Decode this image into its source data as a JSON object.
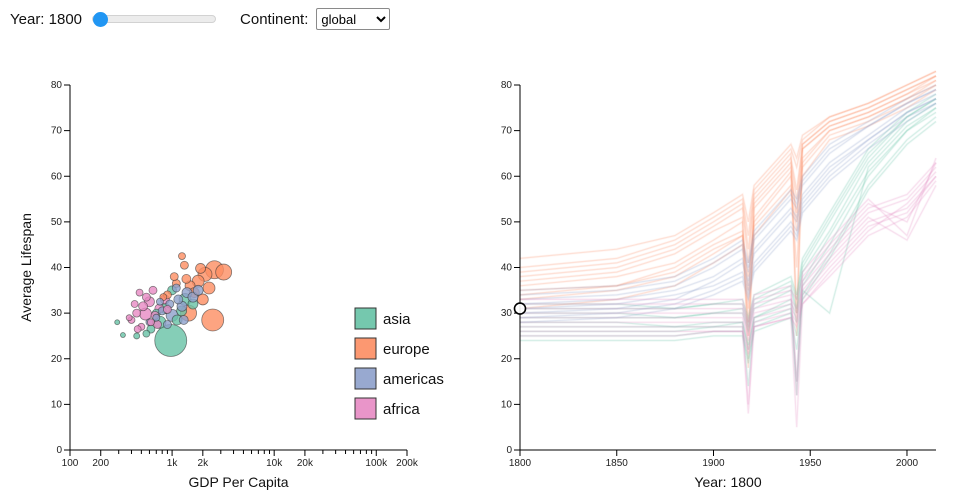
{
  "controls": {
    "year_label": "Year: 1800",
    "slider": {
      "min": 1800,
      "max": 2015,
      "value": 1800
    },
    "continent_label": "Continent:",
    "continent_value": "global",
    "continent_options": [
      "global"
    ]
  },
  "colors": {
    "asia": "#66c2a5",
    "europe": "#fc8d62",
    "americas": "#8da0cb",
    "africa": "#e78ac3"
  },
  "chart_data": [
    {
      "type": "scatter",
      "name": "gdp-vs-lifespan-bubbles",
      "xlabel": "GDP Per Capita",
      "ylabel": "Average Lifespan",
      "x_scale": "log",
      "xlim": [
        100,
        200000
      ],
      "ylim": [
        0,
        80
      ],
      "x_ticks": [
        {
          "v": 100,
          "label": "100"
        },
        {
          "v": 200,
          "label": "200"
        },
        {
          "v": 1000,
          "label": "1k"
        },
        {
          "v": 2000,
          "label": "2k"
        },
        {
          "v": 10000,
          "label": "10k"
        },
        {
          "v": 20000,
          "label": "20k"
        },
        {
          "v": 100000,
          "label": "100k"
        },
        {
          "v": 200000,
          "label": "200k"
        }
      ],
      "y_ticks": [
        0,
        10,
        20,
        30,
        40,
        50,
        60,
        70,
        80
      ],
      "legend": [
        {
          "label": "asia",
          "color": "#66c2a5"
        },
        {
          "label": "europe",
          "color": "#fc8d62"
        },
        {
          "label": "americas",
          "color": "#8da0cb"
        },
        {
          "label": "africa",
          "color": "#e78ac3"
        }
      ],
      "points_by_continent": [
        {
          "continent": "asia",
          "bubbles": [
            [
              970,
              24,
              16
            ],
            [
              760,
              28,
              6
            ],
            [
              620,
              26.5,
              4
            ],
            [
              1120,
              28.5,
              5
            ],
            [
              860,
              31,
              5
            ],
            [
              1340,
              33,
              6
            ],
            [
              560,
              25.5,
              3.5
            ],
            [
              450,
              25,
              3
            ],
            [
              1600,
              32,
              5
            ],
            [
              700,
              30,
              4
            ],
            [
              1000,
              35,
              4.5
            ],
            [
              1240,
              30.5,
              5
            ],
            [
              330,
              25.2,
              2.5
            ],
            [
              290,
              28,
              2.5
            ]
          ]
        },
        {
          "continent": "europe",
          "bubbles": [
            [
              2600,
              39.5,
              9
            ],
            [
              3200,
              39,
              8
            ],
            [
              2100,
              38.5,
              7
            ],
            [
              1800,
              37,
              6
            ],
            [
              1500,
              36,
              5
            ],
            [
              1250,
              42.5,
              3.5
            ],
            [
              1320,
              40.5,
              4
            ],
            [
              1650,
              34.5,
              5
            ],
            [
              2000,
              33,
              5.5
            ],
            [
              1450,
              30,
              8
            ],
            [
              2300,
              35.5,
              6
            ],
            [
              1100,
              36.5,
              4
            ],
            [
              900,
              34,
              4
            ],
            [
              1900,
              39.8,
              5
            ],
            [
              1050,
              38,
              4
            ],
            [
              1380,
              37.5,
              4.5
            ],
            [
              2500,
              28.5,
              11
            ],
            [
              820,
              33.5,
              3.5
            ]
          ]
        },
        {
          "continent": "americas",
          "bubbles": [
            [
              1400,
              34.5,
              5
            ],
            [
              1150,
              33,
              4.5
            ],
            [
              950,
              32,
              4
            ],
            [
              800,
              30.5,
              4
            ],
            [
              700,
              29,
              3.5
            ],
            [
              1250,
              31.5,
              5
            ],
            [
              1600,
              33.5,
              5
            ],
            [
              1000,
              29.5,
              6
            ],
            [
              600,
              28,
              3.5
            ],
            [
              1800,
              35,
              5
            ],
            [
              1100,
              35.5,
              4
            ],
            [
              900,
              27.5,
              4
            ],
            [
              1300,
              28.5,
              4.5
            ],
            [
              760,
              32.5,
              3.5
            ]
          ]
        },
        {
          "continent": "africa",
          "bubbles": [
            [
              450,
              30,
              4
            ],
            [
              520,
              31.5,
              4.5
            ],
            [
              400,
              28.5,
              3.5
            ],
            [
              600,
              32.5,
              5
            ],
            [
              680,
              29.5,
              4
            ],
            [
              500,
              27,
              3.5
            ],
            [
              750,
              31,
              4.5
            ],
            [
              560,
              33.5,
              4
            ],
            [
              480,
              34.5,
              3.5
            ],
            [
              650,
              35,
              4
            ],
            [
              850,
              33,
              4.5
            ],
            [
              430,
              32,
              3.5
            ],
            [
              380,
              29,
              3
            ],
            [
              720,
              27.5,
              4
            ],
            [
              550,
              29.8,
              6
            ],
            [
              900,
              30.8,
              4
            ],
            [
              620,
              28,
              3.5
            ],
            [
              460,
              26.5,
              3.5
            ]
          ]
        }
      ]
    },
    {
      "type": "line",
      "name": "lifespan-over-time",
      "xlabel": "Year: 1800",
      "xlim": [
        1800,
        2015
      ],
      "ylim": [
        0,
        80
      ],
      "x_ticks": [
        1800,
        1850,
        1900,
        1950,
        2000
      ],
      "y_ticks": [
        0,
        10,
        20,
        30,
        40,
        50,
        60,
        70,
        80
      ],
      "marker": {
        "year": 1800,
        "life": 31
      },
      "years": [
        1800,
        1850,
        1880,
        1900,
        1915,
        1918,
        1921,
        1940,
        1943,
        1946,
        1960,
        1980,
        2000,
        2015
      ],
      "series": [
        {
          "continent": "europe",
          "values": [
            36,
            38,
            41,
            46,
            50,
            31,
            53,
            62,
            50,
            66,
            71,
            74,
            78,
            81
          ]
        },
        {
          "continent": "europe",
          "values": [
            38,
            40,
            44,
            49,
            53,
            41,
            55,
            64,
            57,
            67,
            72,
            75,
            79,
            82
          ]
        },
        {
          "continent": "europe",
          "values": [
            33,
            35,
            38,
            43,
            47,
            25,
            49,
            58,
            40,
            62,
            69,
            72,
            76,
            80
          ]
        },
        {
          "continent": "europe",
          "values": [
            40,
            42,
            46,
            51,
            55,
            47,
            57,
            66,
            62,
            68,
            73,
            76,
            80,
            83
          ]
        },
        {
          "continent": "europe",
          "values": [
            35,
            36,
            40,
            45,
            48,
            35,
            51,
            61,
            30,
            64,
            70,
            73,
            77,
            81
          ]
        },
        {
          "continent": "europe",
          "values": [
            37,
            39,
            43,
            48,
            51,
            18,
            54,
            63,
            55,
            66,
            71,
            74,
            78,
            82
          ]
        },
        {
          "continent": "europe",
          "values": [
            42,
            44,
            47,
            52,
            56,
            50,
            58,
            67,
            64,
            69,
            73,
            76,
            80,
            83
          ]
        },
        {
          "continent": "europe",
          "values": [
            31,
            33,
            36,
            41,
            45,
            28,
            47,
            57,
            48,
            60,
            68,
            71,
            75,
            79
          ]
        },
        {
          "continent": "europe",
          "values": [
            39,
            41,
            45,
            50,
            54,
            44,
            56,
            65,
            25,
            67,
            72,
            75,
            79,
            82
          ]
        },
        {
          "continent": "europe",
          "values": [
            34,
            36,
            39,
            44,
            47,
            38,
            50,
            60,
            52,
            63,
            70,
            73,
            77,
            80
          ]
        },
        {
          "continent": "asia",
          "values": [
            28,
            28,
            27,
            28,
            28,
            22,
            29,
            32,
            15,
            36,
            45,
            60,
            70,
            75
          ]
        },
        {
          "continent": "asia",
          "values": [
            25,
            25,
            25,
            26,
            26,
            20,
            27,
            30,
            25,
            34,
            43,
            58,
            68,
            73
          ]
        },
        {
          "continent": "asia",
          "values": [
            30,
            30,
            29,
            30,
            30,
            26,
            31,
            35,
            30,
            39,
            48,
            63,
            72,
            76
          ]
        },
        {
          "continent": "asia",
          "values": [
            27,
            27,
            27,
            27,
            27,
            14,
            28,
            31,
            12,
            35,
            30,
            62,
            71,
            75
          ]
        },
        {
          "continent": "asia",
          "values": [
            32,
            32,
            31,
            32,
            33,
            29,
            34,
            38,
            34,
            42,
            52,
            66,
            74,
            78
          ]
        },
        {
          "continent": "asia",
          "values": [
            24,
            24,
            24,
            25,
            25,
            19,
            26,
            29,
            22,
            33,
            42,
            57,
            67,
            72
          ]
        },
        {
          "continent": "asia",
          "values": [
            29,
            29,
            29,
            30,
            31,
            27,
            32,
            36,
            31,
            40,
            50,
            64,
            73,
            77
          ]
        },
        {
          "continent": "asia",
          "values": [
            26,
            26,
            26,
            27,
            28,
            23,
            29,
            33,
            28,
            37,
            47,
            61,
            70,
            74
          ]
        },
        {
          "continent": "asia",
          "values": [
            31,
            31,
            31,
            32,
            32,
            28,
            33,
            37,
            33,
            41,
            51,
            65,
            73,
            77
          ]
        },
        {
          "continent": "americas",
          "values": [
            33,
            34,
            36,
            40,
            44,
            39,
            46,
            55,
            53,
            58,
            65,
            71,
            76,
            79
          ]
        },
        {
          "continent": "americas",
          "values": [
            30,
            31,
            33,
            37,
            41,
            36,
            43,
            52,
            50,
            55,
            62,
            68,
            74,
            77
          ]
        },
        {
          "continent": "americas",
          "values": [
            35,
            36,
            38,
            42,
            46,
            41,
            48,
            57,
            55,
            60,
            67,
            72,
            77,
            80
          ]
        },
        {
          "continent": "americas",
          "values": [
            28,
            29,
            31,
            34,
            37,
            33,
            39,
            48,
            46,
            52,
            59,
            66,
            72,
            76
          ]
        },
        {
          "continent": "americas",
          "values": [
            32,
            33,
            35,
            38,
            42,
            37,
            44,
            53,
            51,
            56,
            63,
            69,
            75,
            78
          ]
        },
        {
          "continent": "americas",
          "values": [
            29,
            30,
            32,
            35,
            38,
            34,
            40,
            49,
            47,
            53,
            60,
            67,
            73,
            76
          ]
        },
        {
          "continent": "americas",
          "values": [
            34,
            35,
            37,
            41,
            45,
            40,
            47,
            56,
            54,
            59,
            66,
            71,
            76,
            79
          ]
        },
        {
          "continent": "americas",
          "values": [
            31,
            32,
            34,
            36,
            39,
            35,
            41,
            50,
            48,
            54,
            61,
            68,
            74,
            77
          ]
        },
        {
          "continent": "africa",
          "values": [
            30,
            30,
            30,
            30,
            30,
            25,
            31,
            33,
            31,
            36,
            43,
            52,
            55,
            62
          ]
        },
        {
          "continent": "africa",
          "values": [
            27,
            27,
            27,
            27,
            27,
            22,
            28,
            30,
            28,
            33,
            40,
            49,
            52,
            60
          ]
        },
        {
          "continent": "africa",
          "values": [
            32,
            32,
            32,
            32,
            32,
            27,
            33,
            35,
            33,
            38,
            45,
            54,
            50,
            63
          ]
        },
        {
          "continent": "africa",
          "values": [
            29,
            29,
            29,
            29,
            29,
            24,
            30,
            32,
            30,
            35,
            42,
            51,
            46,
            58
          ]
        },
        {
          "continent": "africa",
          "values": [
            25,
            25,
            25,
            26,
            26,
            21,
            27,
            29,
            27,
            32,
            39,
            48,
            54,
            61
          ]
        },
        {
          "continent": "africa",
          "values": [
            33,
            33,
            33,
            33,
            33,
            28,
            34,
            36,
            12,
            39,
            46,
            55,
            47,
            64
          ]
        },
        {
          "continent": "africa",
          "values": [
            28,
            28,
            28,
            28,
            28,
            10,
            29,
            31,
            29,
            34,
            41,
            50,
            53,
            60
          ]
        },
        {
          "continent": "africa",
          "values": [
            31,
            31,
            31,
            31,
            31,
            26,
            32,
            34,
            15,
            37,
            44,
            53,
            56,
            63
          ]
        },
        {
          "continent": "africa",
          "values": [
            26,
            26,
            26,
            26,
            26,
            8,
            27,
            29,
            5,
            32,
            38,
            47,
            51,
            59
          ]
        }
      ]
    }
  ]
}
